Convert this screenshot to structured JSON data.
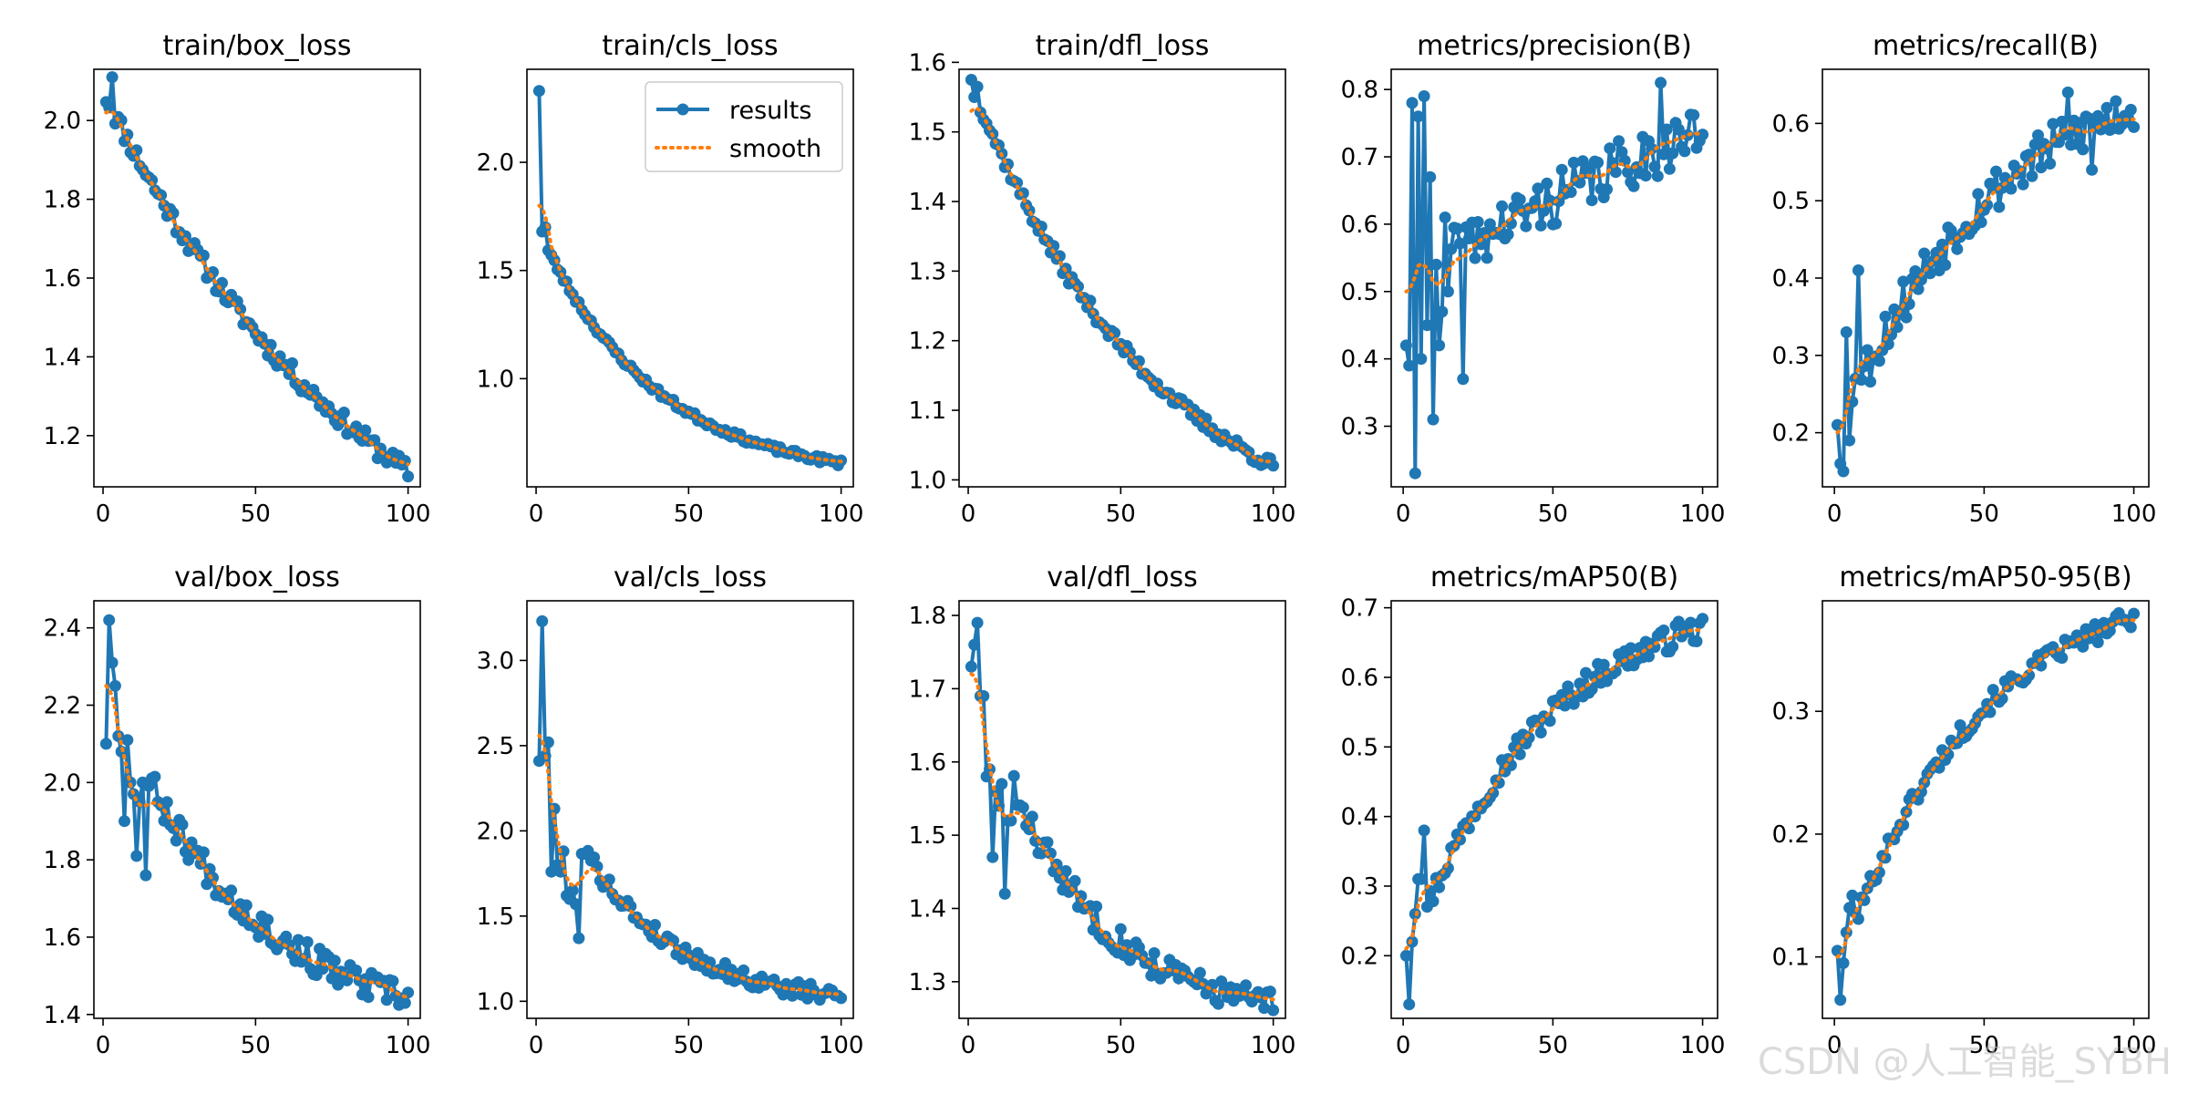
{
  "watermark": "CSDN @人工智能_SYBH",
  "colors": {
    "results": "#1f77b4",
    "smooth": "#ff7f0e",
    "axes": "#000000"
  },
  "legend": {
    "results": "results",
    "smooth": "smooth",
    "placement": "top-right",
    "panel": 1
  },
  "chart_data": [
    {
      "type": "line",
      "title": "train/box_loss",
      "xlim": [
        -3,
        104
      ],
      "ylim": [
        1.07,
        2.13
      ],
      "xticks": [
        0,
        50,
        100
      ],
      "yticks": [
        1.2,
        1.4,
        1.6,
        1.8,
        2.0
      ],
      "yfmt": 1,
      "x": [
        1,
        100
      ],
      "start": 2.06,
      "end": 1.11,
      "k": 1.1,
      "noise": 0.025,
      "seed": 11,
      "overrides": [
        [
          3,
          2.11
        ]
      ],
      "smooth_start": 2.02
    },
    {
      "type": "line",
      "title": "train/cls_loss",
      "xlim": [
        -3,
        104
      ],
      "ylim": [
        0.5,
        2.43
      ],
      "xticks": [
        0,
        50,
        100
      ],
      "yticks": [
        1.0,
        1.5,
        2.0
      ],
      "yfmt": 1,
      "x": [
        1,
        100
      ],
      "start": 1.68,
      "end": 0.61,
      "k": 2.6,
      "noise": 0.015,
      "seed": 23,
      "overrides": [
        [
          1,
          2.33
        ],
        [
          2,
          1.68
        ],
        [
          3,
          1.7
        ]
      ],
      "smooth_start": 1.8
    },
    {
      "type": "line",
      "title": "train/dfl_loss",
      "xlim": [
        -3,
        104
      ],
      "ylim": [
        0.99,
        1.59
      ],
      "xticks": [
        0,
        50,
        100
      ],
      "yticks": [
        1.0,
        1.1,
        1.2,
        1.3,
        1.4,
        1.5,
        1.6
      ],
      "yfmt": 1,
      "x": [
        1,
        100
      ],
      "start": 1.57,
      "end": 1.02,
      "k": 1.6,
      "noise": 0.01,
      "seed": 37,
      "overrides": [
        [
          1,
          1.575
        ],
        [
          2,
          1.55
        ],
        [
          3,
          1.565
        ]
      ],
      "smooth_start": 1.53
    },
    {
      "type": "line",
      "title": "metrics/precision(B)",
      "xlim": [
        -4,
        105
      ],
      "ylim": [
        0.21,
        0.83
      ],
      "xticks": [
        0,
        50,
        100
      ],
      "yticks": [
        0.3,
        0.4,
        0.5,
        0.6,
        0.7,
        0.8
      ],
      "yfmt": 1,
      "x": [
        1,
        100
      ],
      "start": 0.5,
      "end": 0.74,
      "k": -0.8,
      "noise": 0.04,
      "seed": 41,
      "overrides": [
        [
          1,
          0.42
        ],
        [
          2,
          0.39
        ],
        [
          3,
          0.78
        ],
        [
          4,
          0.23
        ],
        [
          5,
          0.76
        ],
        [
          6,
          0.4
        ],
        [
          7,
          0.79
        ],
        [
          8,
          0.45
        ],
        [
          9,
          0.67
        ],
        [
          10,
          0.31
        ],
        [
          11,
          0.54
        ],
        [
          12,
          0.42
        ],
        [
          13,
          0.47
        ],
        [
          14,
          0.61
        ],
        [
          15,
          0.5
        ],
        [
          20,
          0.37
        ],
        [
          86,
          0.81
        ]
      ],
      "smooth_start": 0.5
    },
    {
      "type": "line",
      "title": "metrics/recall(B)",
      "xlim": [
        -4,
        105
      ],
      "ylim": [
        0.13,
        0.67
      ],
      "xticks": [
        0,
        50,
        100
      ],
      "yticks": [
        0.2,
        0.3,
        0.4,
        0.5,
        0.6
      ],
      "yfmt": 1,
      "x": [
        1,
        100
      ],
      "start": 0.2,
      "end": 0.62,
      "k": 1.9,
      "noise": 0.03,
      "seed": 53,
      "overrides": [
        [
          1,
          0.21
        ],
        [
          2,
          0.16
        ],
        [
          3,
          0.15
        ],
        [
          4,
          0.33
        ],
        [
          5,
          0.19
        ],
        [
          6,
          0.24
        ],
        [
          7,
          0.27
        ],
        [
          8,
          0.41
        ],
        [
          78,
          0.64
        ],
        [
          86,
          0.54
        ]
      ],
      "smooth_start": 0.2
    },
    {
      "type": "line",
      "title": "val/box_loss",
      "xlim": [
        -3,
        104
      ],
      "ylim": [
        1.39,
        2.47
      ],
      "xticks": [
        0,
        50,
        100
      ],
      "yticks": [
        1.4,
        1.6,
        1.8,
        2.0,
        2.2,
        2.4
      ],
      "yfmt": 1,
      "x": [
        1,
        100
      ],
      "start": 2.25,
      "end": 1.44,
      "k": 2.2,
      "noise": 0.04,
      "seed": 67,
      "overrides": [
        [
          1,
          2.1
        ],
        [
          2,
          2.42
        ],
        [
          3,
          2.31
        ],
        [
          4,
          2.25
        ],
        [
          5,
          2.12
        ],
        [
          6,
          2.08
        ],
        [
          7,
          1.9
        ],
        [
          8,
          2.11
        ],
        [
          9,
          2.0
        ],
        [
          10,
          1.97
        ],
        [
          11,
          1.81
        ],
        [
          12,
          1.95
        ],
        [
          13,
          2.0
        ],
        [
          14,
          1.76
        ]
      ],
      "smooth_start": 2.25
    },
    {
      "type": "line",
      "title": "val/cls_loss",
      "xlim": [
        -3,
        104
      ],
      "ylim": [
        0.9,
        3.35
      ],
      "xticks": [
        0,
        50,
        100
      ],
      "yticks": [
        1.0,
        1.5,
        2.0,
        2.5,
        3.0
      ],
      "yfmt": 1,
      "x": [
        1,
        100
      ],
      "start": 2.45,
      "end": 1.03,
      "k": 3.2,
      "noise": 0.05,
      "seed": 79,
      "overrides": [
        [
          1,
          2.41
        ],
        [
          2,
          3.23
        ],
        [
          3,
          2.44
        ],
        [
          4,
          2.52
        ],
        [
          5,
          1.76
        ],
        [
          6,
          2.13
        ],
        [
          7,
          1.8
        ],
        [
          8,
          1.76
        ],
        [
          9,
          1.88
        ],
        [
          10,
          1.62
        ],
        [
          11,
          1.6
        ],
        [
          12,
          1.65
        ],
        [
          13,
          1.57
        ],
        [
          14,
          1.37
        ]
      ],
      "smooth_start": 2.56
    },
    {
      "type": "line",
      "title": "val/dfl_loss",
      "xlim": [
        -3,
        104
      ],
      "ylim": [
        1.25,
        1.82
      ],
      "xticks": [
        0,
        50,
        100
      ],
      "yticks": [
        1.3,
        1.4,
        1.5,
        1.6,
        1.7,
        1.8
      ],
      "yfmt": 1,
      "x": [
        1,
        100
      ],
      "start": 1.73,
      "end": 1.27,
      "k": 3.0,
      "noise": 0.02,
      "seed": 83,
      "overrides": [
        [
          1,
          1.73
        ],
        [
          2,
          1.76
        ],
        [
          3,
          1.79
        ],
        [
          4,
          1.69
        ],
        [
          5,
          1.69
        ],
        [
          6,
          1.58
        ],
        [
          7,
          1.59
        ],
        [
          8,
          1.47
        ],
        [
          9,
          1.56
        ],
        [
          10,
          1.54
        ],
        [
          11,
          1.57
        ],
        [
          12,
          1.42
        ],
        [
          13,
          1.52
        ],
        [
          14,
          1.52
        ]
      ],
      "smooth_start": 1.72
    },
    {
      "type": "line",
      "title": "metrics/mAP50(B)",
      "xlim": [
        -4,
        105
      ],
      "ylim": [
        0.11,
        0.71
      ],
      "xticks": [
        0,
        50,
        100
      ],
      "yticks": [
        0.2,
        0.3,
        0.4,
        0.5,
        0.6,
        0.7
      ],
      "yfmt": 1,
      "x": [
        1,
        100
      ],
      "start": 0.19,
      "end": 0.67,
      "k": 2.3,
      "noise": 0.018,
      "seed": 97,
      "overrides": [
        [
          1,
          0.2
        ],
        [
          2,
          0.13
        ],
        [
          3,
          0.22
        ],
        [
          4,
          0.26
        ],
        [
          5,
          0.31
        ],
        [
          6,
          0.31
        ],
        [
          7,
          0.38
        ],
        [
          92,
          0.68
        ]
      ],
      "smooth_start": 0.21
    },
    {
      "type": "line",
      "title": "metrics/mAP50-95(B)",
      "xlim": [
        -4,
        105
      ],
      "ylim": [
        0.05,
        0.39
      ],
      "xticks": [
        0,
        50,
        100
      ],
      "yticks": [
        0.1,
        0.2,
        0.3
      ],
      "yfmt": 1,
      "x": [
        1,
        100
      ],
      "start": 0.09,
      "end": 0.375,
      "k": 2.2,
      "noise": 0.008,
      "seed": 101,
      "overrides": [
        [
          1,
          0.105
        ],
        [
          2,
          0.065
        ],
        [
          3,
          0.095
        ],
        [
          4,
          0.12
        ],
        [
          5,
          0.14
        ],
        [
          6,
          0.15
        ],
        [
          95,
          0.38
        ]
      ],
      "smooth_start": 0.1
    }
  ]
}
